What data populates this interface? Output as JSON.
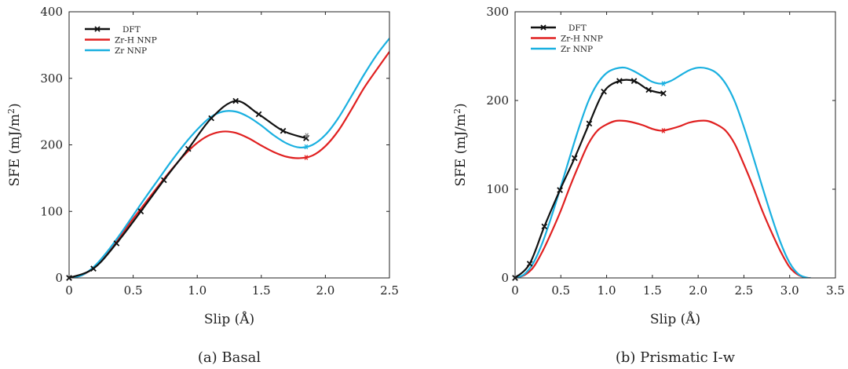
{
  "chart_data": [
    {
      "type": "line",
      "caption": "(a) Basal",
      "xlabel": "Slip (Å)",
      "ylabel_text": "SFE (mJ/m",
      "ylabel_sup": "2",
      "ylabel_close": ")",
      "xlim": [
        0,
        2.5
      ],
      "ylim": [
        0,
        400
      ],
      "xticks": [
        0,
        0.5,
        1,
        1.5,
        2,
        2.5
      ],
      "xtick_labels": [
        "0",
        "0.5",
        "1.0",
        "1.5",
        "2.0",
        "2.5"
      ],
      "yticks": [
        0,
        100,
        200,
        300,
        400
      ],
      "ytick_labels": [
        "0",
        "100",
        "200",
        "300",
        "400"
      ],
      "legend": [
        {
          "label": "DFT",
          "color": "#111111"
        },
        {
          "label": "Zr-H NNP",
          "color": "#e02020"
        },
        {
          "label": "Zr NNP",
          "color": "#1ab0e0"
        }
      ],
      "series": [
        {
          "name": "DFT",
          "color": "#111111",
          "marker": "x",
          "x": [
            0,
            0.19,
            0.37,
            0.56,
            0.74,
            0.93,
            1.11,
            1.3,
            1.48,
            1.67,
            1.85
          ],
          "y": [
            0,
            14,
            52,
            100,
            147,
            194,
            240,
            266,
            246,
            221,
            210
          ],
          "end_marker": {
            "x": 1.855,
            "y": 214
          }
        },
        {
          "name": "Zr-H NNP",
          "color": "#e02020",
          "x": [
            0,
            0.1,
            0.2,
            0.3,
            0.4,
            0.5,
            0.6,
            0.7,
            0.8,
            0.9,
            1.0,
            1.1,
            1.2,
            1.3,
            1.4,
            1.5,
            1.6,
            1.7,
            1.8,
            1.9,
            2.0,
            2.1,
            2.2,
            2.3,
            2.4,
            2.5
          ],
          "y": [
            0,
            4,
            17,
            38,
            63,
            89,
            114,
            139,
            163,
            185,
            203,
            215,
            220,
            218,
            210,
            199,
            189,
            182,
            180,
            184,
            198,
            221,
            252,
            285,
            313,
            340
          ],
          "end_marker": {
            "x": 1.85,
            "y": 181
          }
        },
        {
          "name": "Zr NNP",
          "color": "#1ab0e0",
          "x": [
            0,
            0.1,
            0.2,
            0.3,
            0.4,
            0.5,
            0.6,
            0.7,
            0.8,
            0.9,
            1.0,
            1.1,
            1.2,
            1.3,
            1.4,
            1.5,
            1.6,
            1.7,
            1.8,
            1.9,
            2.0,
            2.1,
            2.2,
            2.3,
            2.4,
            2.5
          ],
          "y": [
            0,
            4,
            18,
            40,
            66,
            94,
            122,
            149,
            176,
            201,
            223,
            241,
            250,
            250,
            242,
            229,
            214,
            202,
            196,
            200,
            215,
            240,
            272,
            305,
            335,
            360
          ],
          "end_marker": {
            "x": 1.85,
            "y": 197
          }
        }
      ]
    },
    {
      "type": "line",
      "caption": "(b) Prismatic I-w",
      "xlabel": "Slip (Å)",
      "ylabel_text": "SFE (mJ/m",
      "ylabel_sup": "2",
      "ylabel_close": ")",
      "xlim": [
        0,
        3.5
      ],
      "ylim": [
        0,
        300
      ],
      "xticks": [
        0,
        0.5,
        1,
        1.5,
        2,
        2.5,
        3,
        3.5
      ],
      "xtick_labels": [
        "0",
        "0.5",
        "1.0",
        "1.5",
        "2.0",
        "2.5",
        "3.0",
        "3.5"
      ],
      "yticks": [
        0,
        100,
        200,
        300
      ],
      "ytick_labels": [
        "0",
        "100",
        "200",
        "300"
      ],
      "legend": [
        {
          "label": "DFT",
          "color": "#111111"
        },
        {
          "label": "Zr-H NNP",
          "color": "#e02020"
        },
        {
          "label": "Zr NNP",
          "color": "#1ab0e0"
        }
      ],
      "series": [
        {
          "name": "DFT",
          "color": "#111111",
          "marker": "x",
          "x": [
            0,
            0.16,
            0.32,
            0.49,
            0.65,
            0.81,
            0.97,
            1.14,
            1.3,
            1.46,
            1.62
          ],
          "y": [
            0,
            16,
            58,
            99,
            135,
            174,
            210,
            222,
            222,
            212,
            208
          ]
        },
        {
          "name": "Zr-H NNP",
          "color": "#e02020",
          "x": [
            0,
            0.1,
            0.2,
            0.3,
            0.4,
            0.5,
            0.6,
            0.7,
            0.8,
            0.9,
            1.0,
            1.1,
            1.2,
            1.3,
            1.4,
            1.5,
            1.6,
            1.7,
            1.8,
            1.9,
            2.0,
            2.1,
            2.2,
            2.3,
            2.4,
            2.5,
            2.6,
            2.7,
            2.8,
            2.9,
            3.0,
            3.1,
            3.2,
            3.23
          ],
          "y": [
            0,
            3,
            12,
            30,
            52,
            76,
            103,
            128,
            151,
            166,
            173,
            177,
            177,
            175,
            172,
            168,
            166,
            168,
            171,
            175,
            177,
            177,
            173,
            166,
            151,
            128,
            103,
            76,
            52,
            30,
            12,
            3,
            0,
            0
          ],
          "end_marker": {
            "x": 1.62,
            "y": 166
          }
        },
        {
          "name": "Zr NNP",
          "color": "#1ab0e0",
          "x": [
            0,
            0.1,
            0.2,
            0.3,
            0.4,
            0.5,
            0.6,
            0.7,
            0.8,
            0.9,
            1.0,
            1.1,
            1.2,
            1.3,
            1.4,
            1.5,
            1.6,
            1.7,
            1.8,
            1.9,
            2.0,
            2.1,
            2.2,
            2.3,
            2.4,
            2.5,
            2.6,
            2.7,
            2.8,
            2.9,
            3.0,
            3.1,
            3.2,
            3.23
          ],
          "y": [
            0,
            4,
            17,
            40,
            70,
            103,
            137,
            170,
            199,
            219,
            231,
            236,
            237,
            233,
            227,
            221,
            219,
            222,
            228,
            234,
            237,
            236,
            231,
            219,
            199,
            170,
            137,
            103,
            70,
            40,
            17,
            4,
            0,
            0
          ],
          "end_marker": {
            "x": 1.62,
            "y": 219
          }
        }
      ]
    }
  ]
}
